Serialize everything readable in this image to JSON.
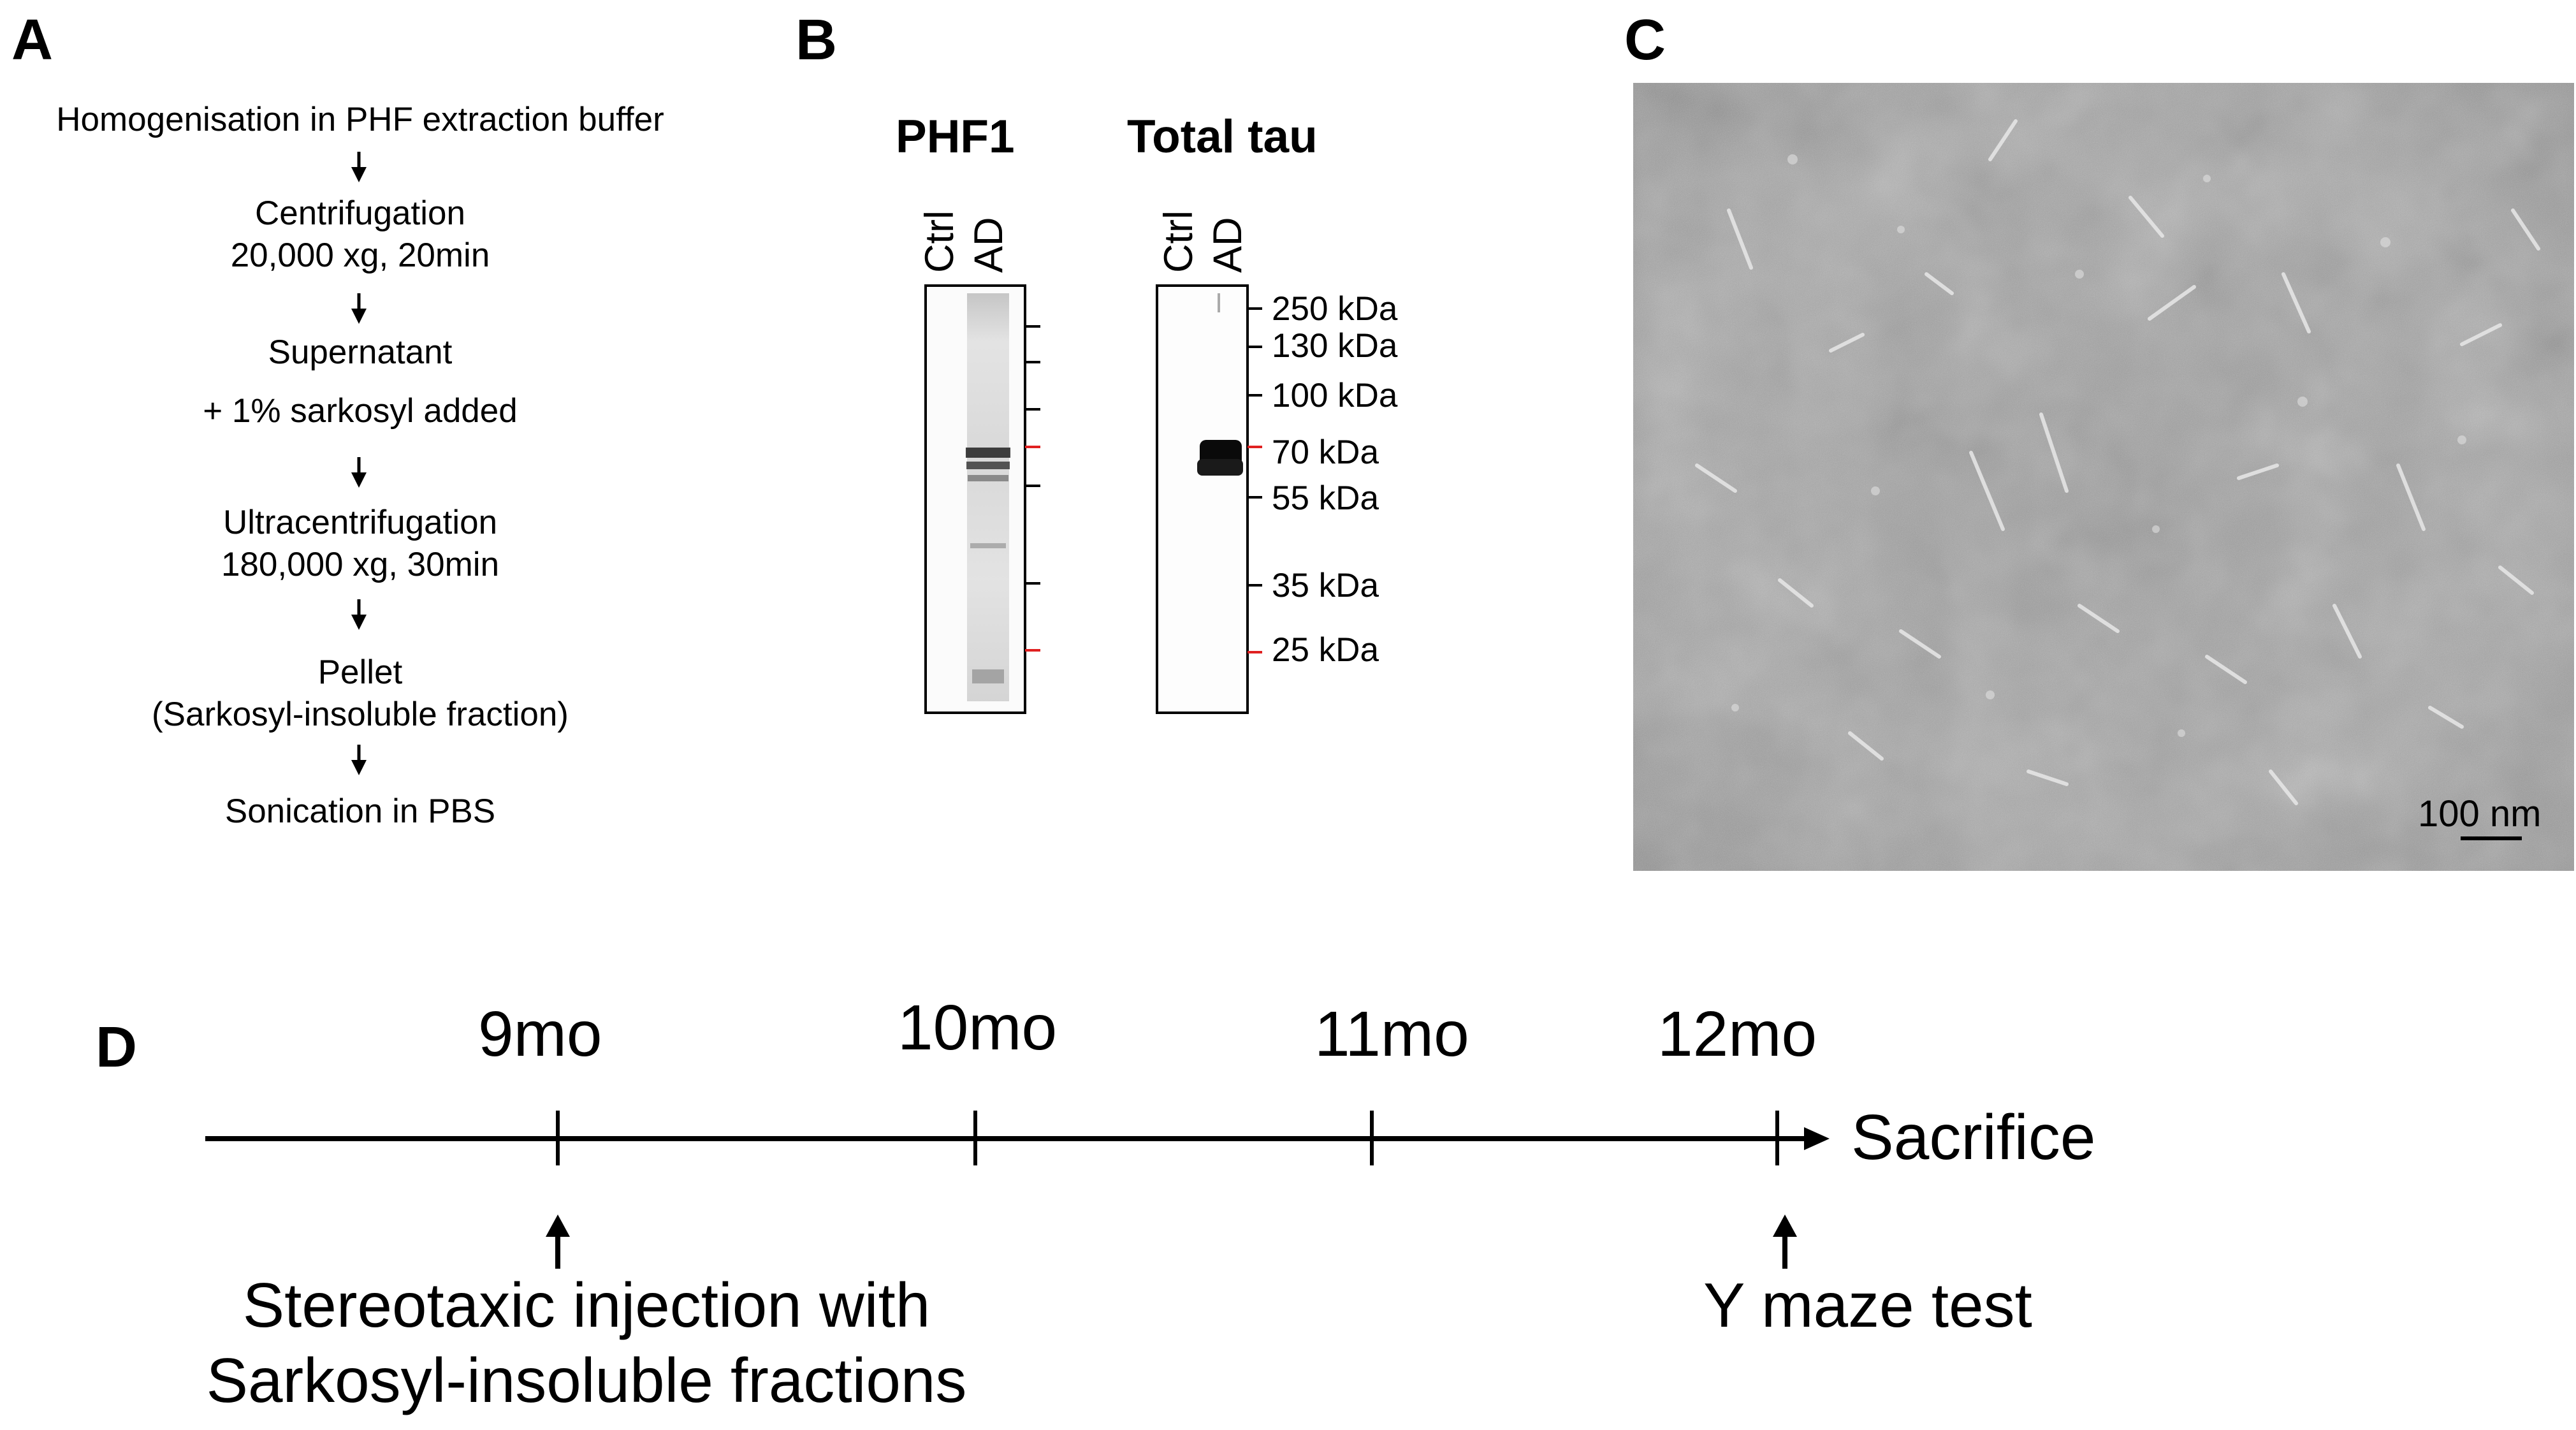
{
  "panels": {
    "a": {
      "letter": "A",
      "steps": [
        "Homogenisation in PHF extraction buffer",
        "Centrifugation",
        "20,000 xg, 20min",
        "Supernatant",
        "+ 1% sarkosyl added",
        "Ultracentrifugation",
        "180,000 xg, 30min",
        "Pellet",
        "(Sarkosyl-insoluble fraction)",
        "Sonication in PBS"
      ]
    },
    "b": {
      "letter": "B",
      "blots": [
        {
          "title": "PHF1",
          "lanes": [
            "Ctrl",
            "AD"
          ]
        },
        {
          "title": "Total tau",
          "lanes": [
            "Ctrl",
            "AD"
          ]
        }
      ],
      "markers": [
        "250 kDa",
        "130 kDa",
        "100 kDa",
        "70 kDa",
        "55 kDa",
        "35 kDa",
        "25 kDa"
      ],
      "marker_color_highlight": "#e02020"
    },
    "c": {
      "letter": "C",
      "scale_bar": "100 nm"
    },
    "d": {
      "letter": "D",
      "timepoints": [
        "9mo",
        "10mo",
        "11mo",
        "12mo"
      ],
      "end_label": "Sacrifice",
      "events": [
        {
          "line1": "Stereotaxic injection with",
          "line2": "Sarkosyl-insoluble fractions"
        },
        {
          "line1": "Y maze test"
        }
      ]
    }
  }
}
